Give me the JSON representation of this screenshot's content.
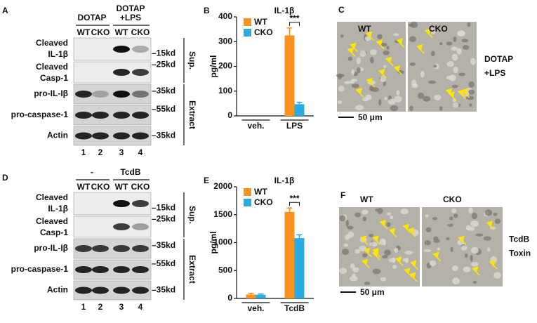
{
  "blots": {
    "A": {
      "letter": "A",
      "group_1": [
        "DOTAP"
      ],
      "group_2": [
        "DOTAP",
        "+LPS"
      ],
      "lanes": [
        "WT",
        "CKO",
        "WT",
        "CKO"
      ],
      "rows": [
        {
          "label": [
            "Cleaved",
            "IL-1β"
          ],
          "marker": "–15kd"
        },
        {
          "label": [
            "Cleaved",
            "Casp-1"
          ],
          "marker": "–25kd"
        },
        {
          "label": [
            "pro-IL-Iβ"
          ],
          "marker": "–35kd"
        },
        {
          "label": [
            "pro-caspase-1"
          ],
          "marker": "–55kd"
        },
        {
          "label": [
            "Actin"
          ],
          "marker": "–35kd"
        }
      ],
      "fractions": [
        "Sup.",
        "Extract"
      ],
      "lane_numbers": [
        "1",
        "2",
        "3",
        "4"
      ]
    },
    "D": {
      "letter": "D",
      "group_1": [
        "-"
      ],
      "group_2": [
        "TcdB"
      ],
      "lanes": [
        "WT",
        "CKO",
        "WT",
        "CKO"
      ],
      "rows": [
        {
          "label": [
            "Cleaved",
            "IL-1β"
          ],
          "marker": "–15kd"
        },
        {
          "label": [
            "Cleaved",
            "Casp-1"
          ],
          "marker": "–25kd"
        },
        {
          "label": [
            "pro-IL-Iβ"
          ],
          "marker": "–35kd"
        },
        {
          "label": [
            "pro-caspase-1"
          ],
          "marker": "–55kd"
        },
        {
          "label": [
            "Actin"
          ],
          "marker": "–35kd"
        }
      ],
      "fractions": [
        "Sup.",
        "Extract"
      ],
      "lane_numbers": [
        "1",
        "2",
        "3",
        "4"
      ]
    }
  },
  "chart_data": [
    {
      "type": "bar",
      "panel_label": "B",
      "title": "IL-1β",
      "y_label": "pg/ml",
      "categories": [
        "veh.",
        "LPS"
      ],
      "series": [
        {
          "name": "WT",
          "color": "#f7931e",
          "values": [
            0,
            325
          ],
          "errors": [
            0,
            30
          ]
        },
        {
          "name": "CKO",
          "color": "#29abe2",
          "values": [
            0,
            47
          ],
          "errors": [
            0,
            8
          ]
        }
      ],
      "ylim": [
        0,
        400
      ],
      "yticks": [
        0,
        100,
        200,
        300,
        400
      ],
      "significance": "***"
    },
    {
      "type": "bar",
      "panel_label": "E",
      "title": "IL-1β",
      "y_label": "pg/ml",
      "categories": [
        "veh.",
        "TcdB"
      ],
      "series": [
        {
          "name": "WT",
          "color": "#f7931e",
          "values": [
            70,
            1550
          ],
          "errors": [
            20,
            70
          ]
        },
        {
          "name": "CKO",
          "color": "#29abe2",
          "values": [
            65,
            1080
          ],
          "errors": [
            15,
            60
          ]
        }
      ],
      "ylim": [
        0,
        2000
      ],
      "yticks": [
        0,
        500,
        1000,
        1500,
        2000
      ],
      "significance": "***"
    }
  ],
  "micrographs": {
    "C": {
      "letter": "C",
      "left": "WT",
      "right": "CKO",
      "condition": [
        "DOTAP",
        "+LPS"
      ],
      "scale": "50 μm"
    },
    "F": {
      "letter": "F",
      "left": "WT",
      "right": "CKO",
      "condition": [
        "TcdB",
        "Toxin"
      ],
      "scale": "50 μm"
    }
  }
}
